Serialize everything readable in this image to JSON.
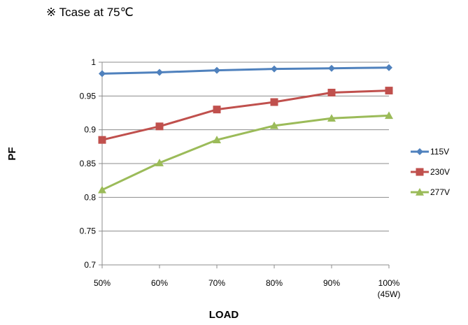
{
  "note": "※ Tcase at 75℃",
  "chart_data": {
    "type": "line",
    "title": "",
    "xlabel": "LOAD",
    "ylabel": "PF",
    "categories": [
      "50%",
      "60%",
      "70%",
      "80%",
      "90%",
      "100%\n(45W)"
    ],
    "ylim": [
      0.7,
      1
    ],
    "yticks": [
      0.7,
      0.75,
      0.8,
      0.85,
      0.9,
      0.95,
      1
    ],
    "ytick_labels": [
      "0.7",
      "0.75",
      "0.8",
      "0.85",
      "0.9",
      "0.95",
      "1"
    ],
    "grid": "horizontal",
    "legend_position": "right",
    "series": [
      {
        "name": "115V",
        "color": "#4F81BD",
        "marker": "diamond",
        "values": [
          0.983,
          0.985,
          0.988,
          0.99,
          0.991,
          0.992
        ]
      },
      {
        "name": "230V",
        "color": "#C0504D",
        "marker": "square",
        "values": [
          0.885,
          0.905,
          0.93,
          0.941,
          0.955,
          0.958
        ]
      },
      {
        "name": "277V",
        "color": "#9BBB59",
        "marker": "triangle",
        "values": [
          0.811,
          0.851,
          0.885,
          0.906,
          0.917,
          0.921
        ]
      }
    ]
  }
}
